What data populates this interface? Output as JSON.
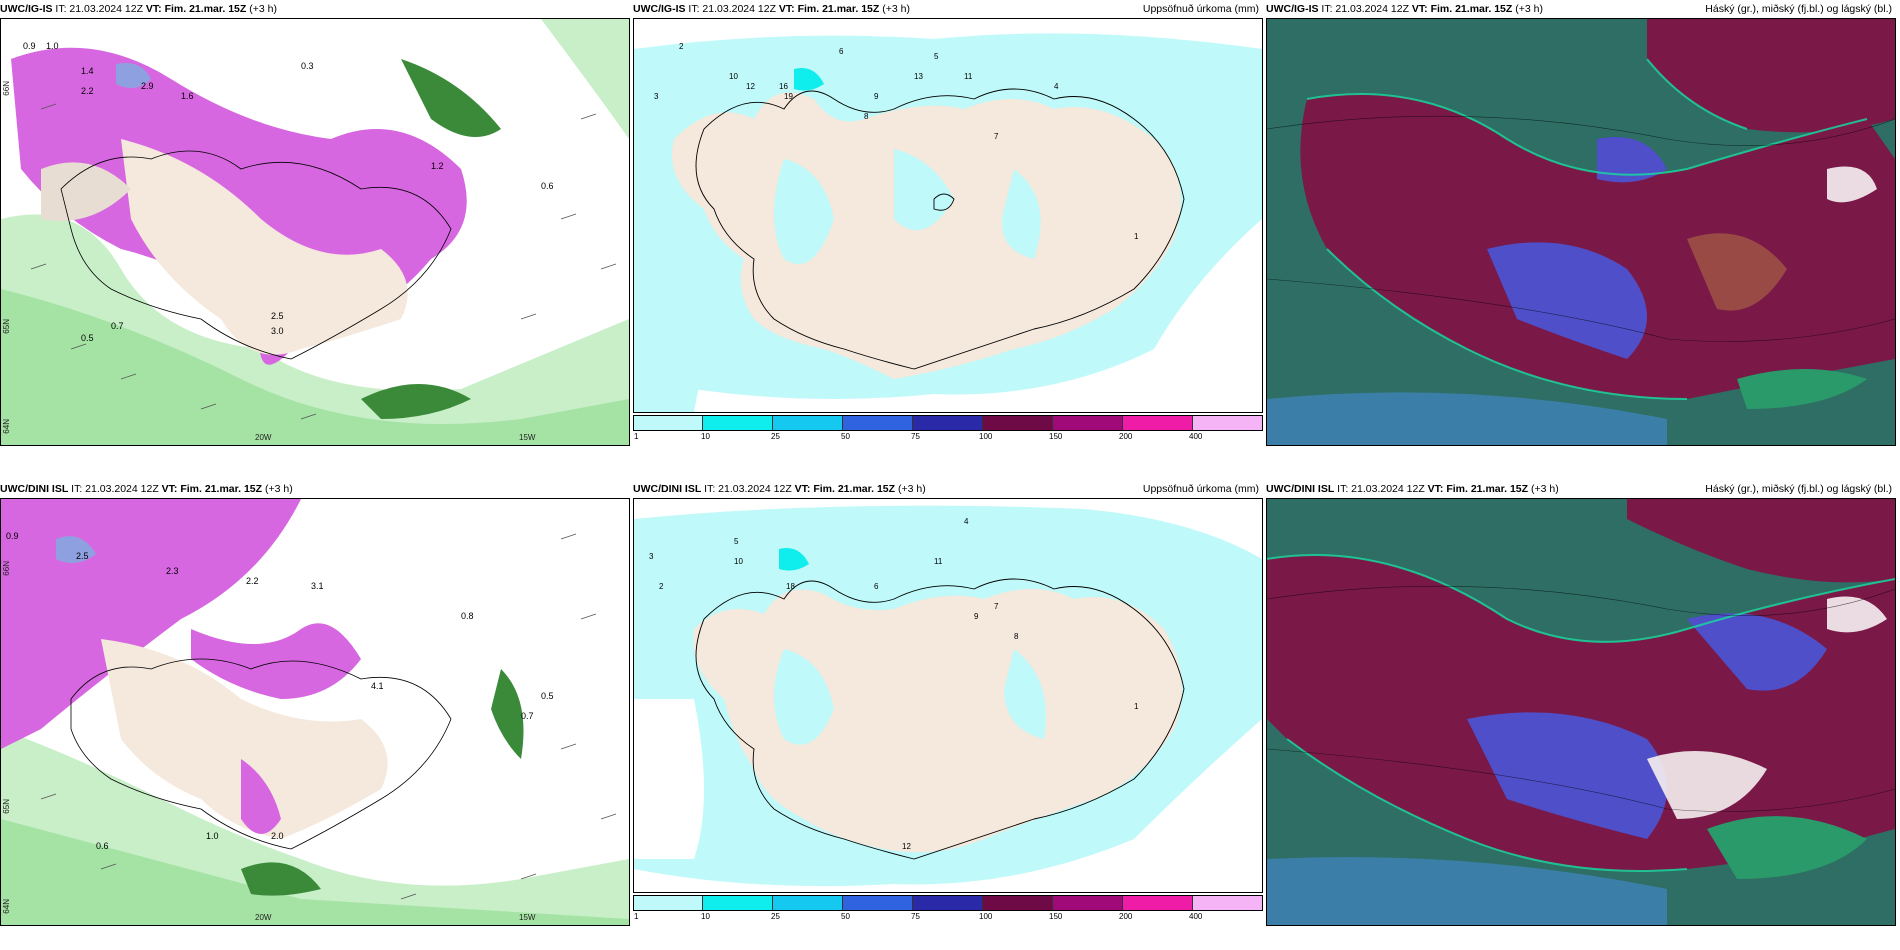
{
  "panels": {
    "p1": {
      "model": "UWC/IG-IS",
      "it": "IT: 21.03.2024 12Z",
      "vt_label": "VT:",
      "vt_value": "Fim. 21.mar. 15Z",
      "lead": "(+3 h)",
      "field": ""
    },
    "p2": {
      "model": "UWC/IG-IS",
      "it": "IT: 21.03.2024 12Z",
      "vt_label": "VT:",
      "vt_value": "Fim. 21.mar. 15Z",
      "lead": "(+3 h)",
      "field": "Uppsöfnuð úrkoma (mm)"
    },
    "p3": {
      "model": "UWC/IG-IS",
      "it": "IT: 21.03.2024 12Z",
      "vt_label": "VT:",
      "vt_value": "Fim. 21.mar. 15Z",
      "lead": "(+3 h)",
      "field": "Háský (gr.), miðský (fj.bl.) og lágský (bl.)"
    },
    "p4": {
      "model": "UWC/DINI ISL",
      "it": "IT: 21.03.2024 12Z",
      "vt_label": "VT:",
      "vt_value": "Fim. 21.mar. 15Z",
      "lead": "(+3 h)",
      "field": ""
    },
    "p5": {
      "model": "UWC/DINI ISL",
      "it": "IT: 21.03.2024 12Z",
      "vt_label": "VT:",
      "vt_value": "Fim. 21.mar. 15Z",
      "lead": "(+3 h)",
      "field": "Uppsöfnuð úrkoma (mm)"
    },
    "p6": {
      "model": "UWC/DINI ISL",
      "it": "IT: 21.03.2024 12Z",
      "vt_label": "VT:",
      "vt_value": "Fim. 21.mar. 15Z",
      "lead": "(+3 h)",
      "field": "Háský (gr.), miðský (fj.bl.) og lágský (bl.)"
    }
  },
  "axes": {
    "lon_labels": [
      "20W",
      "15W"
    ],
    "lat_labels": [
      "66N",
      "65N",
      "64N"
    ]
  },
  "colorbar": {
    "ticks": [
      "1",
      "10",
      "25",
      "50",
      "75",
      "100",
      "150",
      "200",
      "400"
    ],
    "colors": [
      "#bff9f9",
      "#10eded",
      "#14c8f0",
      "#2f63e0",
      "#2a2aa8",
      "#6e0a46",
      "#a00a78",
      "#ee1ca6",
      "#f5b4f5"
    ]
  },
  "precip_labels": {
    "ig": [
      "2",
      "6",
      "3",
      "12",
      "10",
      "13",
      "11",
      "5",
      "4",
      "7",
      "8",
      "9",
      "1",
      "19",
      "16"
    ],
    "dini": [
      "3",
      "2",
      "5",
      "10",
      "11",
      "6",
      "4",
      "7",
      "8",
      "9",
      "1",
      "12",
      "18"
    ]
  },
  "wind_labels": {
    "ig": [
      "0.9",
      "1.0",
      "1.4",
      "2.2",
      "2.9",
      "0.7",
      "0.5",
      "0.6",
      "1.6",
      "0.3",
      "1.2",
      "2.5",
      "3.0"
    ],
    "dini": [
      "0.9",
      "2.5",
      "2.3",
      "2.2",
      "0.8",
      "0.7",
      "0.5",
      "1.0",
      "0.6",
      "2.0",
      "3.1",
      "4.1"
    ]
  },
  "colors": {
    "land": "#f5e8dc",
    "precip_light": "#bff9f9",
    "cloud_high": "#7a1848",
    "cloud_mid": "#4f4fc9",
    "cloud_low": "#2e6e64",
    "wind_green": "#a5e3a5",
    "wind_magenta": "#d767e0"
  }
}
